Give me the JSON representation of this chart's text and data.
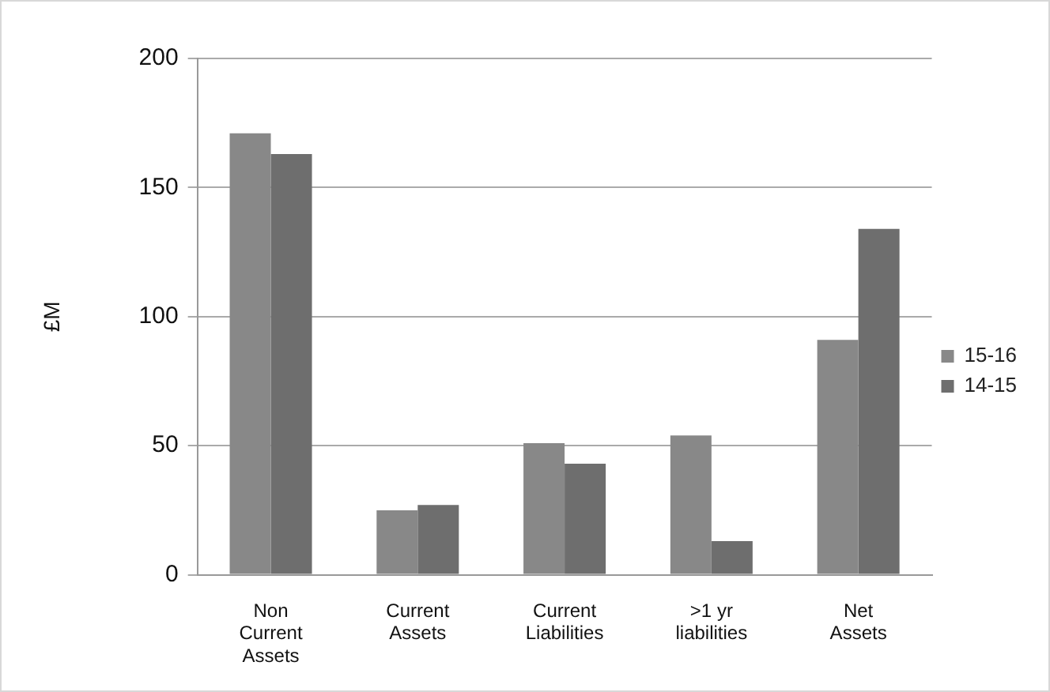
{
  "chart_data": {
    "type": "bar",
    "ylabel": "£M",
    "categories": [
      "Non\nCurrent\nAssets",
      "Current\nAssets",
      "Current\nLiabilities",
      ">1 yr\nliabilities",
      "Net\nAssets"
    ],
    "series": [
      {
        "name": "15-16",
        "color": "#888888",
        "values": [
          171,
          25,
          51,
          54,
          91
        ]
      },
      {
        "name": "14-15",
        "color": "#6e6e6e",
        "values": [
          163,
          27,
          43,
          13,
          134
        ]
      }
    ],
    "ylim": [
      0,
      200
    ],
    "yticks": [
      0,
      50,
      100,
      150,
      200
    ],
    "grid": "y",
    "legend": "right"
  }
}
